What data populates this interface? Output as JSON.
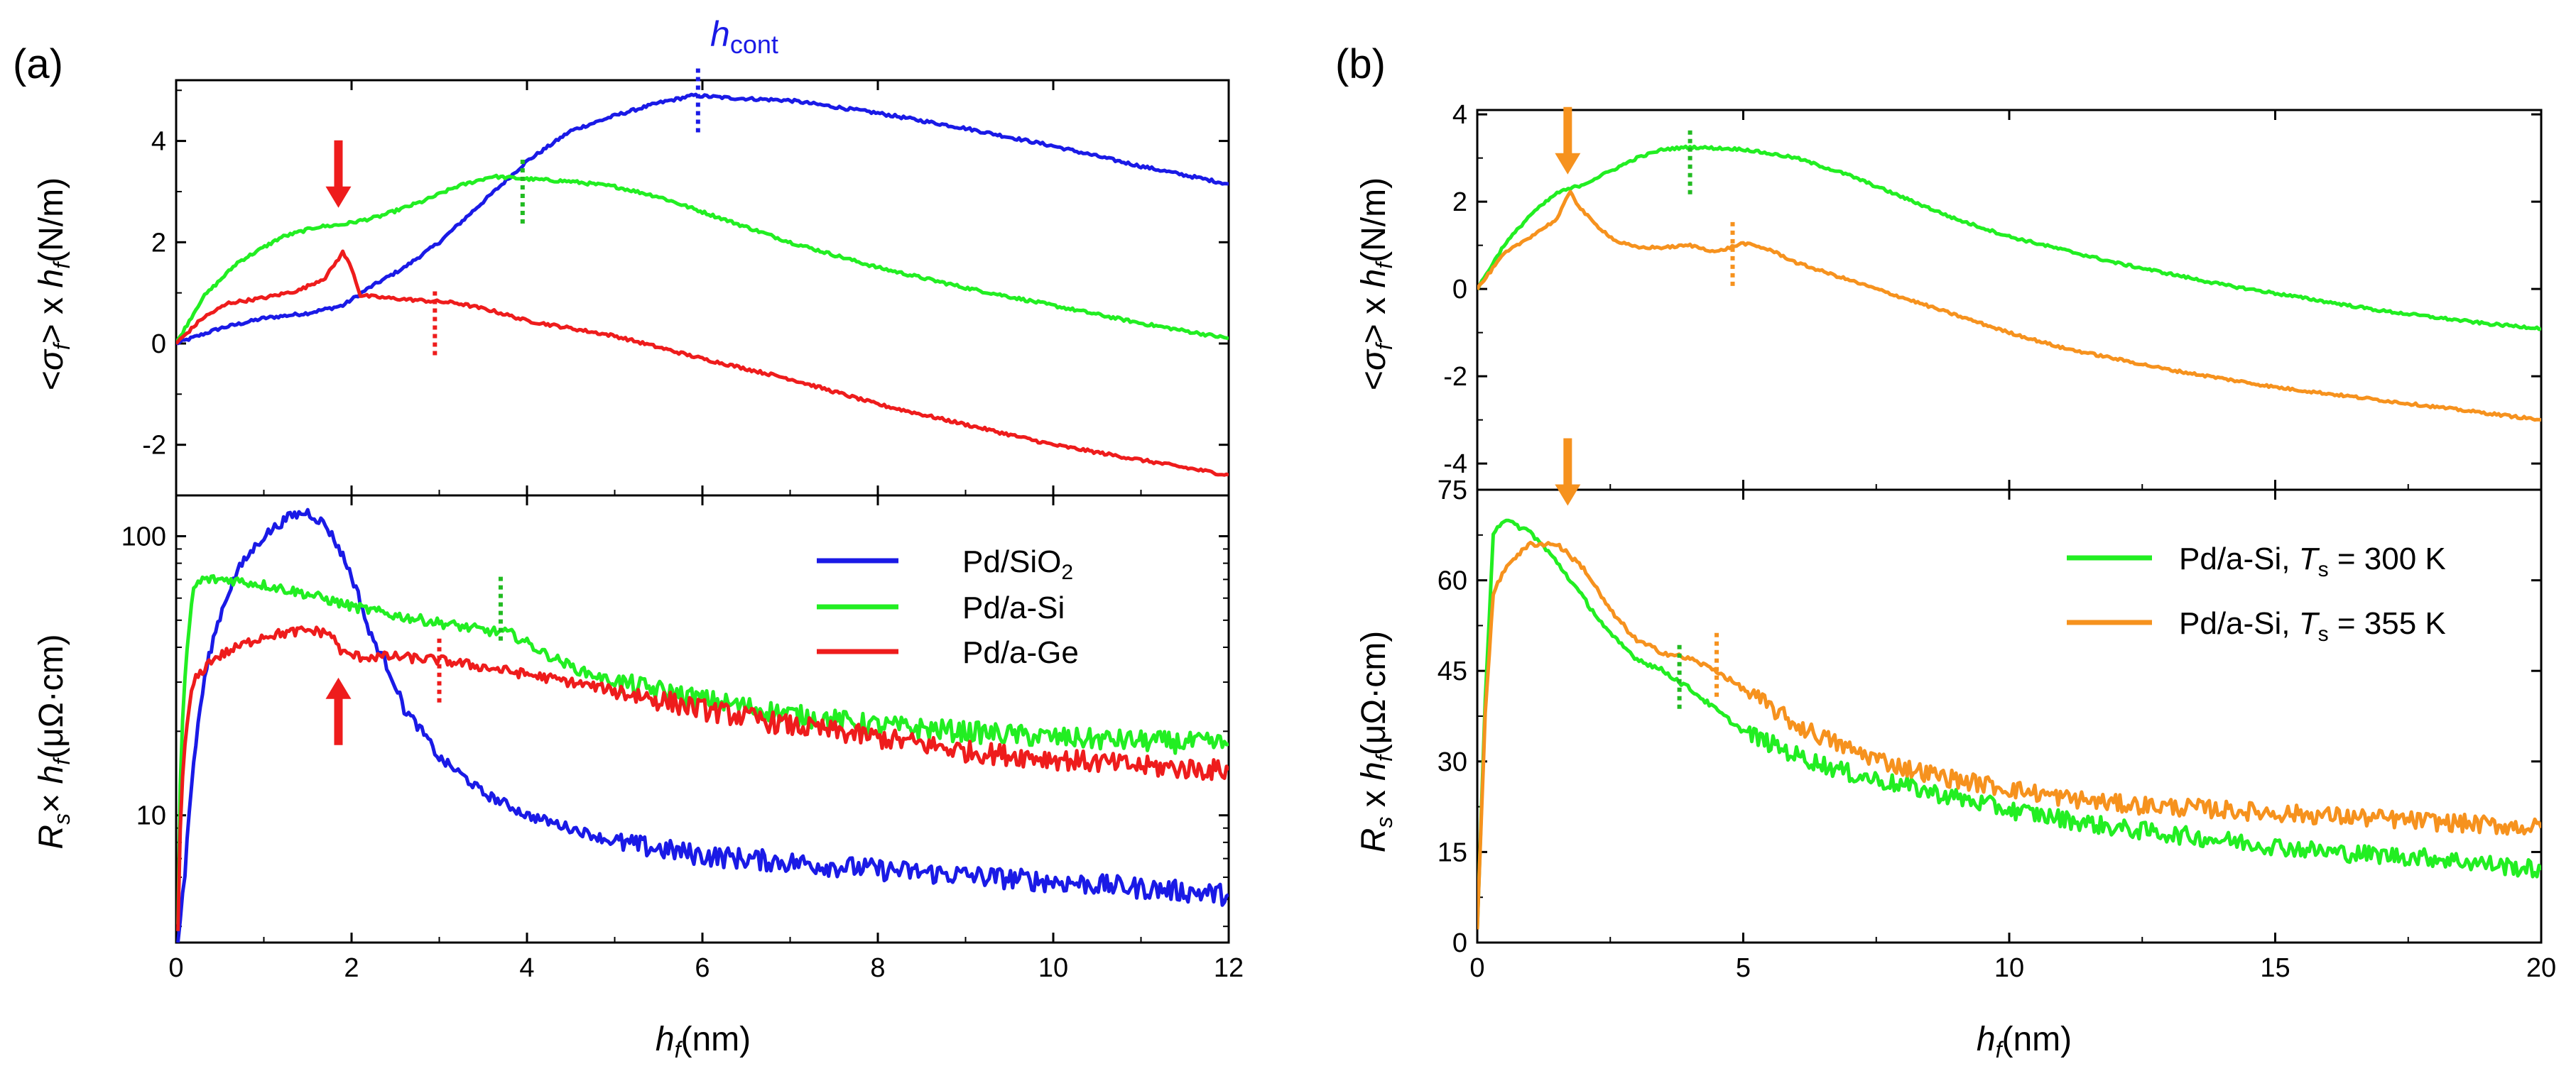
{
  "chart_data": [
    {
      "type": "line",
      "panel_label": "(a)",
      "subplot": "top",
      "ylabel": "<σf> x hf (N/m)",
      "xlabel": "",
      "xlim": [
        0,
        12
      ],
      "ylim": [
        -3,
        5.2
      ],
      "x_ticks": [
        0,
        2,
        4,
        6,
        8,
        10,
        12
      ],
      "y_ticks": [
        -2,
        0,
        2,
        4
      ],
      "annotations": [
        {
          "text": "hcont",
          "x": 6.0,
          "y": 5.0,
          "color": "#1a1ae6"
        },
        {
          "type": "arrow-down",
          "x": 1.85,
          "y": 2.4,
          "color": "#ee1c1c"
        }
      ],
      "markers": [
        {
          "type": "dotted-vline",
          "x": 5.95,
          "y_center": 4.8,
          "color": "#1a1ae6"
        },
        {
          "type": "dotted-vline",
          "x": 3.95,
          "y_center": 3.0,
          "color": "#22bb22"
        },
        {
          "type": "dotted-vline",
          "x": 2.95,
          "y_center": 0.4,
          "color": "#ee1c1c"
        }
      ],
      "series": [
        {
          "name": "Pd/SiO2",
          "color": "#1a1ae6",
          "x": [
            0,
            0.5,
            1,
            1.5,
            1.9,
            2.2,
            2.6,
            3,
            3.5,
            4,
            4.5,
            5,
            5.5,
            5.9,
            6.3,
            7,
            8,
            9,
            10,
            11,
            12
          ],
          "y": [
            0,
            0.3,
            0.5,
            0.6,
            0.75,
            1.1,
            1.5,
            2.0,
            2.8,
            3.6,
            4.2,
            4.5,
            4.75,
            4.9,
            4.85,
            4.8,
            4.55,
            4.25,
            3.9,
            3.5,
            3.15
          ]
        },
        {
          "name": "Pd/a-Si",
          "color": "#22ee22",
          "x": [
            0,
            0.3,
            0.7,
            1.2,
            1.6,
            1.9,
            2.3,
            2.8,
            3.2,
            3.6,
            4,
            4.5,
            5,
            5.5,
            6,
            6.5,
            7,
            8,
            9,
            10,
            11,
            12
          ],
          "y": [
            0,
            0.9,
            1.6,
            2.1,
            2.3,
            2.35,
            2.5,
            2.8,
            3.1,
            3.3,
            3.25,
            3.2,
            3.1,
            2.9,
            2.6,
            2.3,
            2.0,
            1.5,
            1.1,
            0.75,
            0.4,
            0.1
          ]
        },
        {
          "name": "Pd/a-Ge",
          "color": "#ee1c1c",
          "x": [
            0,
            0.3,
            0.6,
            1,
            1.4,
            1.7,
            1.9,
            2.0,
            2.1,
            2.4,
            2.8,
            3.2,
            3.6,
            4,
            4.5,
            5,
            6,
            7,
            8,
            9,
            10,
            11,
            12
          ],
          "y": [
            0,
            0.5,
            0.8,
            0.9,
            1.05,
            1.3,
            1.8,
            1.5,
            0.95,
            0.9,
            0.85,
            0.8,
            0.65,
            0.45,
            0.3,
            0.15,
            -0.3,
            -0.7,
            -1.2,
            -1.6,
            -2.0,
            -2.3,
            -2.6
          ]
        }
      ]
    },
    {
      "type": "line",
      "panel_label": "",
      "subplot": "bottom",
      "ylabel": "Rs× hf (μΩ·cm)",
      "xlabel": "hf (nm)",
      "yscale": "log",
      "xlim": [
        0,
        12
      ],
      "ylim": [
        3.5,
        140
      ],
      "x_ticks": [
        0,
        2,
        4,
        6,
        8,
        10,
        12
      ],
      "y_ticks": [
        10,
        100
      ],
      "legend_position": "top-right",
      "annotations": [
        {
          "type": "arrow-up",
          "x": 1.85,
          "y": 35,
          "color": "#ee1c1c"
        }
      ],
      "markers": [
        {
          "type": "dotted-vline",
          "x": 3.7,
          "y_center": 55,
          "color": "#22bb22"
        },
        {
          "type": "dotted-vline",
          "x": 3.0,
          "y_center": 33,
          "color": "#ee1c1c"
        }
      ],
      "series": [
        {
          "name": "Pd/SiO2",
          "color": "#1a1ae6",
          "x": [
            0.02,
            0.1,
            0.2,
            0.4,
            0.7,
            1.0,
            1.3,
            1.5,
            1.7,
            1.9,
            2.2,
            2.6,
            3.0,
            3.5,
            4.0,
            5,
            6,
            7,
            8,
            9,
            10,
            11,
            12
          ],
          "y": [
            3.5,
            6,
            15,
            40,
            75,
            100,
            118,
            122,
            110,
            85,
            45,
            24,
            16,
            12,
            10,
            8,
            7.2,
            6.8,
            6.4,
            6.1,
            5.8,
            5.5,
            5.2
          ]
        },
        {
          "name": "Pd/a-Si",
          "color": "#22ee22",
          "x": [
            0.02,
            0.1,
            0.2,
            0.3,
            0.6,
            1.0,
            1.5,
            2.0,
            2.5,
            3.0,
            3.5,
            3.8,
            4.2,
            4.6,
            5,
            6,
            7,
            8,
            9,
            10,
            11,
            12
          ],
          "y": [
            4,
            30,
            65,
            70,
            70,
            67,
            62,
            56,
            52,
            49,
            46,
            45,
            38,
            33,
            30,
            26,
            23,
            21,
            20,
            19,
            18.5,
            18
          ]
        },
        {
          "name": "Pd/a-Ge",
          "color": "#ee1c1c",
          "x": [
            0.02,
            0.1,
            0.2,
            0.4,
            0.7,
            1.0,
            1.5,
            1.75,
            1.9,
            2.1,
            2.5,
            3.0,
            3.5,
            4,
            5,
            6,
            7,
            8,
            9,
            10,
            11,
            12
          ],
          "y": [
            4,
            18,
            30,
            36,
            40,
            44,
            46,
            45,
            38,
            37,
            37,
            36,
            34,
            32,
            28,
            24,
            21,
            19,
            17,
            16,
            15,
            14.5
          ]
        }
      ]
    },
    {
      "type": "line",
      "panel_label": "(b)",
      "subplot": "top",
      "ylabel": "<σf> x hf (N/m)",
      "xlabel": "",
      "xlim": [
        0,
        20
      ],
      "ylim": [
        -4.6,
        4.1
      ],
      "x_ticks": [
        0,
        5,
        10,
        15,
        20
      ],
      "y_ticks": [
        -4,
        -2,
        0,
        2,
        4
      ],
      "annotations": [
        {
          "type": "arrow-down",
          "x": 1.7,
          "y": 2.3,
          "color": "#f6921e"
        }
      ],
      "markers": [
        {
          "type": "dotted-vline",
          "x": 4.0,
          "y_center": 2.9,
          "color": "#22bb22"
        },
        {
          "type": "dotted-vline",
          "x": 4.8,
          "y_center": 0.8,
          "color": "#f6921e"
        }
      ],
      "series": [
        {
          "name": "Pd/a-Si, Ts = 300 K",
          "color": "#22ee22",
          "x": [
            0,
            0.5,
            1,
            1.5,
            2,
            2.5,
            3,
            3.5,
            4,
            5,
            6,
            7,
            8,
            9,
            10,
            11,
            12,
            13,
            14,
            15,
            16,
            17,
            18,
            19,
            20
          ],
          "y": [
            0,
            1.0,
            1.7,
            2.2,
            2.4,
            2.7,
            3.0,
            3.2,
            3.25,
            3.2,
            3.0,
            2.6,
            2.1,
            1.6,
            1.2,
            0.9,
            0.6,
            0.35,
            0.1,
            -0.1,
            -0.3,
            -0.5,
            -0.65,
            -0.8,
            -0.9
          ]
        },
        {
          "name": "Pd/a-Si, Ts = 355 K",
          "color": "#f6921e",
          "x": [
            0,
            0.5,
            1,
            1.5,
            1.75,
            1.9,
            2.2,
            2.6,
            3,
            3.5,
            4,
            4.5,
            5,
            5.5,
            6,
            7,
            8,
            9,
            10,
            11,
            12,
            13,
            14,
            15,
            16,
            17,
            18,
            19,
            20
          ],
          "y": [
            0,
            0.8,
            1.2,
            1.6,
            2.25,
            1.9,
            1.5,
            1.1,
            0.95,
            0.95,
            1.0,
            0.85,
            1.05,
            0.9,
            0.6,
            0.2,
            -0.2,
            -0.6,
            -1.0,
            -1.35,
            -1.6,
            -1.85,
            -2.05,
            -2.25,
            -2.4,
            -2.55,
            -2.7,
            -2.85,
            -3.0
          ]
        }
      ]
    },
    {
      "type": "line",
      "panel_label": "",
      "subplot": "bottom",
      "ylabel": "Rs x hf (μΩ·cm)",
      "xlabel": "hf (nm)",
      "xlim": [
        0,
        20
      ],
      "ylim": [
        0,
        75
      ],
      "x_ticks": [
        0,
        5,
        10,
        15,
        20
      ],
      "y_ticks": [
        0,
        15,
        30,
        45,
        60,
        75
      ],
      "legend_position": "top-right",
      "annotations": [
        {
          "type": "arrow-down",
          "x": 1.7,
          "y": 70,
          "color": "#f6921e"
        }
      ],
      "markers": [
        {
          "type": "dotted-vline",
          "x": 3.8,
          "y_center": 44,
          "color": "#22bb22"
        },
        {
          "type": "dotted-vline",
          "x": 4.5,
          "y_center": 46,
          "color": "#f6921e"
        }
      ],
      "series": [
        {
          "name": "Pd/a-Si, Ts = 300 K",
          "color": "#22ee22",
          "x": [
            0,
            0.15,
            0.3,
            0.5,
            1.0,
            1.5,
            2,
            2.5,
            3,
            3.5,
            4,
            5,
            6,
            7,
            8,
            9,
            10,
            11,
            12,
            13,
            14,
            15,
            16,
            17,
            18,
            19,
            20
          ],
          "y": [
            2,
            40,
            68,
            70,
            68,
            63,
            57,
            51,
            47,
            45,
            42,
            35,
            31,
            28,
            26,
            24,
            22,
            20.5,
            19,
            18,
            17,
            16,
            15,
            14.5,
            14,
            13,
            12
          ]
        },
        {
          "name": "Pd/a-Si, Ts = 355 K",
          "color": "#f6921e",
          "x": [
            0,
            0.15,
            0.3,
            0.6,
            1.0,
            1.5,
            2,
            2.5,
            3,
            3.5,
            4,
            4.5,
            5,
            6,
            7,
            8,
            9,
            10,
            11,
            12,
            13,
            14,
            15,
            16,
            17,
            18,
            19,
            20
          ],
          "y": [
            2,
            38,
            58,
            63,
            66,
            66,
            62,
            55,
            50,
            48,
            47,
            45,
            42,
            36,
            32,
            29,
            27,
            25.5,
            24,
            23,
            22.5,
            22,
            21.5,
            21,
            20.5,
            20,
            19.5,
            19
          ]
        }
      ]
    }
  ],
  "legend_a": [
    {
      "base": "Pd/SiO",
      "sub": "2"
    },
    {
      "base": "Pd/a-Si",
      "sub": ""
    },
    {
      "base": "Pd/a-Ge",
      "sub": ""
    }
  ],
  "legend_b": [
    {
      "pre": "Pd/a-Si, ",
      "T": "T",
      "Ts": "s",
      "post": " = 300 K"
    },
    {
      "pre": "Pd/a-Si, ",
      "T": "T",
      "Ts": "s",
      "post": " = 355 K"
    }
  ],
  "labels": {
    "panel_a": "(a)",
    "panel_b": "(b)",
    "h": "h",
    "cont": "cont",
    "ylab_top_pre": "<",
    "ylab_sigma": "σ",
    "ylab_f": "f",
    "ylab_mid": "> x ",
    "ylab_unit": "(N/m)",
    "ylab_R": "R",
    "ylab_s": "s",
    "ylab_times_a": "× ",
    "ylab_times_b": " x ",
    "ylab_runit": "(μΩ·cm)",
    "xlab_unit": "(nm)"
  }
}
